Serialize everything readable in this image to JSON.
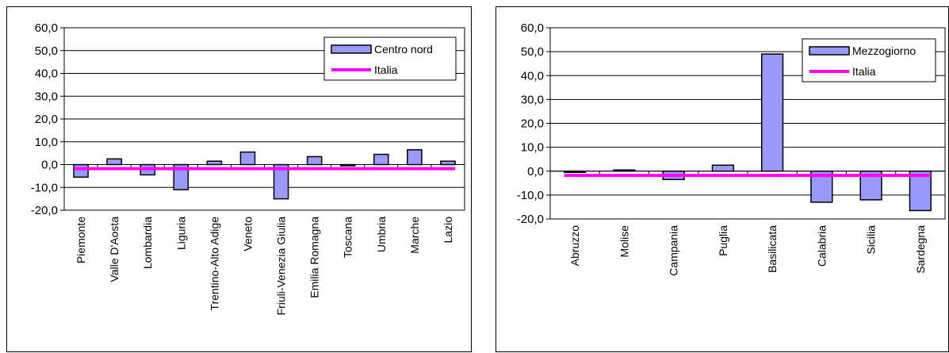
{
  "chart_data": [
    {
      "type": "bar",
      "categories": [
        "Piemonte",
        "Valle D'Aosta",
        "Lombardia",
        "Liguria",
        "Trentino-Alto Adige",
        "Veneto",
        "Friuli-Venezia Giulia",
        "Emilia Romagna",
        "Toscana",
        "Umbria",
        "Marche",
        "Lazio"
      ],
      "series": [
        {
          "name": "Centro nord",
          "kind": "bar",
          "values": [
            -5.5,
            2.5,
            -4.5,
            -11.0,
            1.5,
            5.5,
            -15.0,
            3.5,
            -0.5,
            4.5,
            6.5,
            1.5
          ]
        },
        {
          "name": "Italia",
          "kind": "line",
          "values": [
            -1.8,
            -1.8,
            -1.8,
            -1.8,
            -1.8,
            -1.8,
            -1.8,
            -1.8,
            -1.8,
            -1.8,
            -1.8,
            -1.8
          ]
        }
      ],
      "ylim": [
        -20,
        60
      ],
      "yticks": [
        "60,0",
        "50,0",
        "40,0",
        "30,0",
        "20,0",
        "10,0",
        "0,0",
        "-10,0",
        "-20,0"
      ],
      "grid": true,
      "legend": "top-right"
    },
    {
      "type": "bar",
      "categories": [
        "Abruzzo",
        "Molise",
        "Campania",
        "Puglia",
        "Basilicata",
        "Calabria",
        "Sicilia",
        "Sardegna"
      ],
      "series": [
        {
          "name": "Mezzogiorno",
          "kind": "bar",
          "values": [
            -0.5,
            0.5,
            -3.5,
            2.5,
            49.0,
            -13.0,
            -12.0,
            -16.5
          ]
        },
        {
          "name": "Italia",
          "kind": "line",
          "values": [
            -1.8,
            -1.8,
            -1.8,
            -1.8,
            -1.8,
            -1.8,
            -1.8,
            -1.8
          ]
        }
      ],
      "ylim": [
        -20,
        60
      ],
      "yticks": [
        "60,0",
        "50,0",
        "40,0",
        "30,0",
        "20,0",
        "10,0",
        "0,0",
        "-10,0",
        "-20,0"
      ],
      "grid": true,
      "legend": "top-right"
    }
  ],
  "colors": {
    "bar_fill": "#9999ff",
    "bar_stroke": "#000000",
    "italia_line": "#ff00ff"
  }
}
